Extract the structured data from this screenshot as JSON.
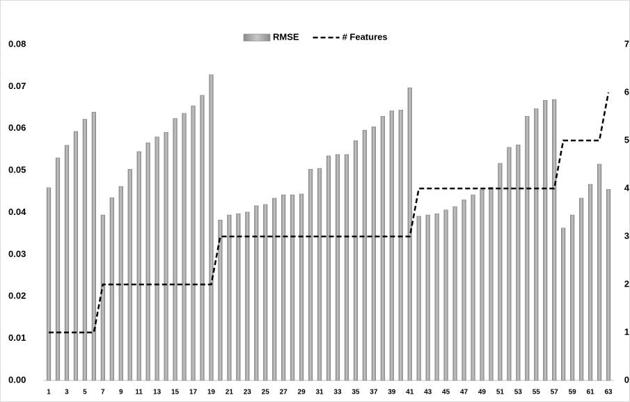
{
  "chart_data": {
    "type": "bar",
    "categories": [
      1,
      null,
      3,
      null,
      5,
      null,
      7,
      null,
      9,
      null,
      11,
      null,
      13,
      null,
      15,
      null,
      17,
      null,
      19,
      null,
      21,
      null,
      23,
      null,
      25,
      null,
      27,
      null,
      29,
      null,
      31,
      null,
      33,
      null,
      35,
      null,
      37,
      null,
      39,
      null,
      41,
      null,
      43,
      null,
      45,
      null,
      47,
      null,
      49,
      null,
      51,
      null,
      53,
      null,
      55,
      null,
      57,
      null,
      59,
      null,
      61,
      null,
      63
    ],
    "series": [
      {
        "name": "RMSE",
        "type": "bar",
        "color": "#a6a6a6",
        "values": [
          0.0459,
          0.053,
          0.056,
          0.0593,
          0.0622,
          0.0639,
          0.0394,
          0.0435,
          0.0462,
          0.0503,
          0.0545,
          0.0566,
          0.058,
          0.0591,
          0.0624,
          0.0636,
          0.0654,
          0.0679,
          0.0728,
          0.0382,
          0.0394,
          0.0397,
          0.0401,
          0.0416,
          0.0419,
          0.0434,
          0.0442,
          0.0442,
          0.0444,
          0.0503,
          0.0505,
          0.0535,
          0.0538,
          0.0538,
          0.0571,
          0.0596,
          0.0604,
          0.0629,
          0.0642,
          0.0644,
          0.0697,
          0.0391,
          0.0394,
          0.0397,
          0.0406,
          0.0414,
          0.043,
          0.0442,
          0.0454,
          0.046,
          0.0517,
          0.0555,
          0.0561,
          0.0629,
          0.0647,
          0.0667,
          0.0669,
          0.0363,
          0.0394,
          0.0434,
          0.0467,
          0.0515,
          0.0455
        ]
      },
      {
        "name": "# Features",
        "type": "line",
        "axis": "y2",
        "color": "#000000",
        "values": [
          1,
          1,
          1,
          1,
          1,
          1,
          2,
          2,
          2,
          2,
          2,
          2,
          2,
          2,
          2,
          2,
          2,
          2,
          2,
          3,
          3,
          3,
          3,
          3,
          3,
          3,
          3,
          3,
          3,
          3,
          3,
          3,
          3,
          3,
          3,
          3,
          3,
          3,
          3,
          3,
          3,
          4,
          4,
          4,
          4,
          4,
          4,
          4,
          4,
          4,
          4,
          4,
          4,
          4,
          4,
          4,
          4,
          5,
          5,
          5,
          5,
          5,
          6
        ]
      }
    ],
    "ylim": [
      0,
      0.08
    ],
    "yticks": [
      {
        "value": 0,
        "label": "0.00"
      },
      0.01,
      0.02,
      0.03,
      0.04,
      0.05,
      0.06,
      0.07,
      0.08
    ],
    "y2lim": [
      0,
      7
    ],
    "y2ticks": [
      0,
      1,
      2,
      3,
      4,
      5,
      6,
      7
    ],
    "legend": "top"
  }
}
